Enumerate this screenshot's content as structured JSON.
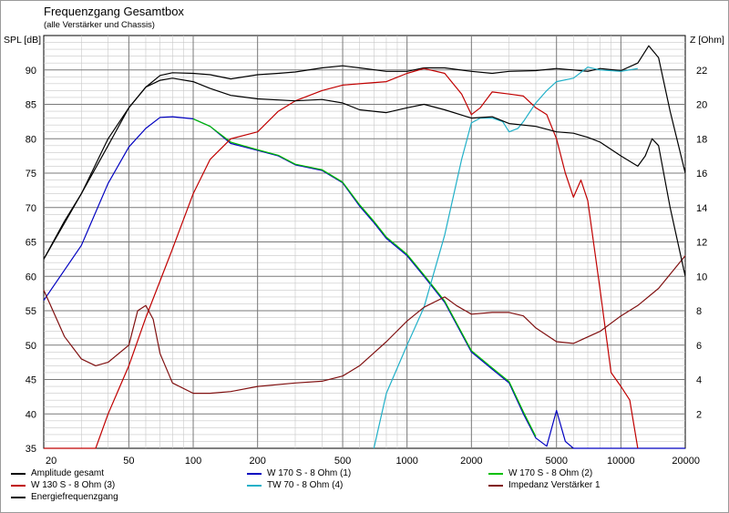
{
  "title": "Frequenzgang Gesamtbox",
  "subtitle": "(alle Verstärker und Chassis)",
  "chart_data": {
    "type": "line",
    "title": "Frequenzgang Gesamtbox",
    "subtitle": "(alle Verstärker und Chassis)",
    "xscale": "log",
    "xlim": [
      20,
      20000
    ],
    "x_ticks": [
      20,
      50,
      100,
      200,
      500,
      1000,
      2000,
      5000,
      10000,
      20000
    ],
    "ylabel_left": "SPL [dB]",
    "ylim_left": [
      35,
      95
    ],
    "y_ticks_left": [
      35,
      40,
      45,
      50,
      55,
      60,
      65,
      70,
      75,
      80,
      85,
      90
    ],
    "ylabel_right": "Z [Ohm]",
    "ylim_right": [
      0,
      24
    ],
    "y_ticks_right": [
      2,
      4,
      6,
      8,
      10,
      12,
      14,
      16,
      18,
      20,
      22
    ],
    "grid": true,
    "legend_position": "bottom",
    "series": [
      {
        "name": "Amplitude gesamt",
        "color": "#000000",
        "axis": "left",
        "x": [
          20,
          25,
          30,
          40,
          50,
          60,
          70,
          80,
          100,
          120,
          150,
          200,
          250,
          300,
          400,
          500,
          600,
          800,
          1000,
          1200,
          1500,
          2000,
          2500,
          3000,
          4000,
          5000,
          6000,
          7000,
          8000,
          10000,
          12000,
          13500,
          15000,
          17000,
          20000
        ],
        "y": [
          62.5,
          68,
          72,
          79,
          84.5,
          87.5,
          89.2,
          89.6,
          89.5,
          89.3,
          88.7,
          89.3,
          89.5,
          89.7,
          90.3,
          90.6,
          90.3,
          89.8,
          89.8,
          90.3,
          90.3,
          89.8,
          89.5,
          89.8,
          89.9,
          90.2,
          90,
          89.8,
          90.2,
          89.9,
          91,
          93.5,
          91.8,
          84,
          75
        ]
      },
      {
        "name": "W 170 S - 8 Ohm (1)",
        "color": "#0000c0",
        "axis": "left",
        "x": [
          20,
          30,
          40,
          50,
          60,
          70,
          80,
          100,
          120,
          150,
          200,
          250,
          300,
          400,
          500,
          600,
          700,
          800,
          1000,
          1200,
          1500,
          2000,
          2500,
          3000,
          3500,
          4000,
          4500,
          5000,
          5500,
          6000,
          20000
        ],
        "y": [
          56.5,
          64.5,
          73.5,
          78.8,
          81.5,
          83.1,
          83.2,
          82.9,
          81.8,
          79.3,
          78.3,
          77.5,
          76.2,
          75.4,
          73.6,
          70.2,
          67.8,
          65.5,
          63,
          60,
          56.2,
          49,
          46.5,
          44.5,
          40,
          36.5,
          35.3,
          40.5,
          36,
          35,
          35
        ]
      },
      {
        "name": "W 170 S - 8 Ohm (2)",
        "color": "#00c000",
        "axis": "left",
        "x": [
          100,
          120,
          150,
          200,
          250,
          300,
          400,
          500,
          600,
          700,
          800,
          1000,
          1200,
          1500,
          2000,
          2500,
          3000,
          3500,
          4000
        ],
        "y": [
          82.9,
          81.8,
          79.5,
          78.4,
          77.6,
          76.3,
          75.5,
          73.7,
          70.4,
          68,
          65.7,
          63.2,
          60.2,
          56.4,
          49.2,
          46.7,
          44.7,
          40.3,
          36.7
        ]
      },
      {
        "name": "W 130 S - 8 Ohm (3)",
        "color": "#c00000",
        "axis": "left",
        "x": [
          20,
          35,
          40,
          50,
          60,
          80,
          100,
          120,
          150,
          200,
          250,
          300,
          400,
          500,
          600,
          800,
          1000,
          1200,
          1500,
          1800,
          2000,
          2200,
          2500,
          3000,
          3500,
          4000,
          4500,
          5000,
          5500,
          6000,
          6500,
          7000,
          8000,
          9000,
          10000,
          11000,
          12000
        ],
        "y": [
          35,
          35,
          40,
          47,
          54,
          64,
          72,
          77,
          80,
          81,
          84,
          85.5,
          87,
          87.8,
          88,
          88.3,
          89.5,
          90.2,
          89.5,
          86.5,
          83.5,
          84.5,
          86.8,
          86.5,
          86.2,
          84.5,
          83.5,
          80,
          75,
          71.5,
          74,
          71,
          58,
          46,
          44,
          42,
          35
        ]
      },
      {
        "name": "TW 70 - 8 Ohm (4)",
        "color": "#20b0c8",
        "axis": "left",
        "x": [
          700,
          800,
          1000,
          1200,
          1500,
          1800,
          2000,
          2200,
          2500,
          2800,
          3000,
          3300,
          3500,
          4000,
          4500,
          5000,
          6000,
          7000,
          8000,
          10000,
          12000
        ],
        "y": [
          35,
          43,
          50,
          55.5,
          66,
          77,
          82.3,
          83,
          83,
          82.5,
          81,
          81.5,
          82.5,
          85.2,
          87,
          88.3,
          88.8,
          90.4,
          90,
          89.8,
          90.2
        ]
      },
      {
        "name": "Impedanz Verstärker 1",
        "color": "#801010",
        "axis": "right",
        "x": [
          20,
          25,
          30,
          35,
          40,
          50,
          55,
          60,
          65,
          70,
          80,
          100,
          120,
          150,
          200,
          300,
          400,
          500,
          600,
          800,
          1000,
          1200,
          1500,
          1700,
          2000,
          2500,
          3000,
          3500,
          4000,
          5000,
          6000,
          8000,
          10000,
          12000,
          15000,
          20000
        ],
        "y": [
          9.2,
          6.5,
          5.2,
          4.8,
          5,
          6,
          8,
          8.3,
          7.5,
          5.5,
          3.8,
          3.2,
          3.2,
          3.3,
          3.6,
          3.8,
          3.9,
          4.2,
          4.8,
          6.2,
          7.4,
          8.2,
          8.8,
          8.3,
          7.8,
          7.9,
          7.9,
          7.7,
          7,
          6.2,
          6.1,
          6.8,
          7.7,
          8.3,
          9.3,
          11.2
        ]
      },
      {
        "name": "Energiefrequenzgang",
        "color": "#000000",
        "axis": "left",
        "x": [
          20,
          30,
          40,
          50,
          60,
          70,
          80,
          100,
          120,
          150,
          200,
          300,
          400,
          500,
          600,
          800,
          1000,
          1200,
          1500,
          2000,
          2500,
          3000,
          4000,
          5000,
          6000,
          7000,
          8000,
          10000,
          12000,
          13000,
          14000,
          15000,
          17000,
          20000
        ],
        "y": [
          62.5,
          72,
          80,
          84.5,
          87.5,
          88.5,
          88.8,
          88.3,
          87.3,
          86.3,
          85.8,
          85.5,
          85.7,
          85.2,
          84.2,
          83.8,
          84.5,
          85,
          84.2,
          83,
          83.2,
          82.2,
          81.8,
          81,
          80.8,
          80.2,
          79.5,
          77.5,
          76,
          77.5,
          80,
          79,
          70,
          60
        ]
      }
    ]
  }
}
